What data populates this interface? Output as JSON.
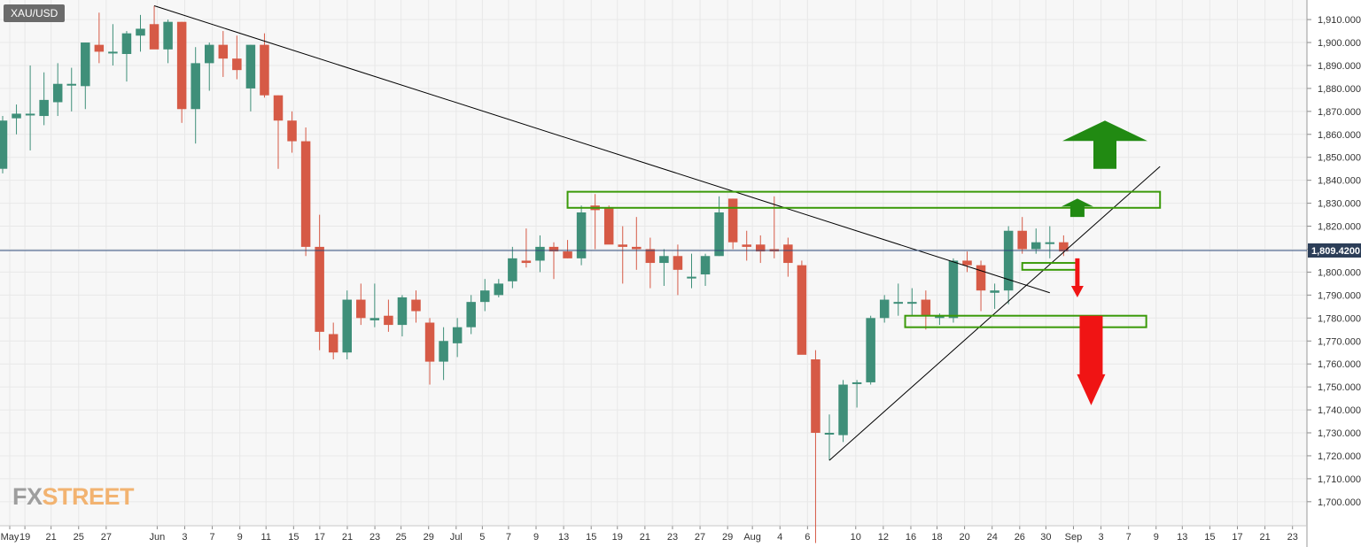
{
  "ticker": "XAU/USD",
  "logo": {
    "part1": "FX",
    "part2": "STREET"
  },
  "colors": {
    "bull": "#3f8f79",
    "bear": "#d65a46",
    "trend": "#000000",
    "zone": "#3b9a0a",
    "arrow_up": "#218a12",
    "arrow_down": "#f01414",
    "price_line": "#2e4a7a",
    "price_label_bg": "#2c3e58",
    "grid": "#e8e8e8",
    "axis_text": "#333333"
  },
  "chart_data": {
    "type": "candlestick",
    "title": "XAU/USD",
    "ylim": [
      1692,
      1918
    ],
    "y_ticks": [
      "1,700.0000",
      "1,710.0000",
      "1,720.0000",
      "1,730.0000",
      "1,740.0000",
      "1,750.0000",
      "1,760.0000",
      "1,770.0000",
      "1,780.0000",
      "1,790.0000",
      "1,800.0000",
      "1,810.0000",
      "1,820.0000",
      "1,830.0000",
      "1,840.0000",
      "1,850.0000",
      "1,860.0000",
      "1,870.0000",
      "1,880.0000",
      "1,890.0000",
      "1,900.0000",
      "1,910.0000"
    ],
    "x_ticks": [
      "May",
      "19",
      "21",
      "25",
      "27",
      "Jun",
      "3",
      "7",
      "9",
      "11",
      "15",
      "17",
      "21",
      "23",
      "25",
      "29",
      "Jul",
      "5",
      "7",
      "9",
      "13",
      "15",
      "19",
      "21",
      "23",
      "27",
      "29",
      "Aug",
      "4",
      "6",
      "10",
      "12",
      "16",
      "18",
      "20",
      "24",
      "26",
      "30",
      "Sep",
      "3",
      "7",
      "9",
      "13",
      "15",
      "17",
      "21",
      "23"
    ],
    "current_price": 1809.42,
    "current_price_label": "1,809.4200",
    "candles": [
      {
        "o": 1845,
        "h": 1868,
        "l": 1843,
        "c": 1866
      },
      {
        "o": 1867,
        "h": 1873,
        "l": 1860,
        "c": 1869
      },
      {
        "o": 1869,
        "h": 1890,
        "l": 1853,
        "c": 1869
      },
      {
        "o": 1868,
        "h": 1887,
        "l": 1864,
        "c": 1875
      },
      {
        "o": 1874,
        "h": 1891,
        "l": 1868,
        "c": 1882
      },
      {
        "o": 1882,
        "h": 1889,
        "l": 1870,
        "c": 1882
      },
      {
        "o": 1881,
        "h": 1900,
        "l": 1871,
        "c": 1900
      },
      {
        "o": 1899,
        "h": 1913,
        "l": 1891,
        "c": 1896
      },
      {
        "o": 1896,
        "h": 1908,
        "l": 1890,
        "c": 1896
      },
      {
        "o": 1895,
        "h": 1905,
        "l": 1883,
        "c": 1904
      },
      {
        "o": 1903,
        "h": 1912,
        "l": 1896,
        "c": 1906
      },
      {
        "o": 1908,
        "h": 1916,
        "l": 1898,
        "c": 1897
      },
      {
        "o": 1897,
        "h": 1910,
        "l": 1891,
        "c": 1909
      },
      {
        "o": 1909,
        "h": 1909,
        "l": 1865,
        "c": 1871
      },
      {
        "o": 1871,
        "h": 1898,
        "l": 1856,
        "c": 1891
      },
      {
        "o": 1891,
        "h": 1900,
        "l": 1879,
        "c": 1899
      },
      {
        "o": 1899,
        "h": 1905,
        "l": 1885,
        "c": 1893
      },
      {
        "o": 1893,
        "h": 1903,
        "l": 1884,
        "c": 1888
      },
      {
        "o": 1880,
        "h": 1899,
        "l": 1870,
        "c": 1899
      },
      {
        "o": 1899,
        "h": 1904,
        "l": 1876,
        "c": 1877
      },
      {
        "o": 1877,
        "h": 1877,
        "l": 1845,
        "c": 1866
      },
      {
        "o": 1866,
        "h": 1870,
        "l": 1852,
        "c": 1857
      },
      {
        "o": 1857,
        "h": 1863,
        "l": 1807,
        "c": 1811
      },
      {
        "o": 1811,
        "h": 1825,
        "l": 1766,
        "c": 1774
      },
      {
        "o": 1773,
        "h": 1778,
        "l": 1762,
        "c": 1765
      },
      {
        "o": 1765,
        "h": 1792,
        "l": 1762,
        "c": 1788
      },
      {
        "o": 1788,
        "h": 1795,
        "l": 1777,
        "c": 1780
      },
      {
        "o": 1779,
        "h": 1795,
        "l": 1776,
        "c": 1780
      },
      {
        "o": 1781,
        "h": 1788,
        "l": 1774,
        "c": 1777
      },
      {
        "o": 1777,
        "h": 1790,
        "l": 1772,
        "c": 1789
      },
      {
        "o": 1788,
        "h": 1792,
        "l": 1778,
        "c": 1783
      },
      {
        "o": 1778,
        "h": 1780,
        "l": 1751,
        "c": 1761
      },
      {
        "o": 1761,
        "h": 1776,
        "l": 1753,
        "c": 1770
      },
      {
        "o": 1769,
        "h": 1780,
        "l": 1763,
        "c": 1776
      },
      {
        "o": 1776,
        "h": 1790,
        "l": 1773,
        "c": 1787
      },
      {
        "o": 1787,
        "h": 1797,
        "l": 1783,
        "c": 1792
      },
      {
        "o": 1790,
        "h": 1797,
        "l": 1789,
        "c": 1795
      },
      {
        "o": 1796,
        "h": 1811,
        "l": 1793,
        "c": 1806
      },
      {
        "o": 1805,
        "h": 1819,
        "l": 1802,
        "c": 1804
      },
      {
        "o": 1805,
        "h": 1816,
        "l": 1800,
        "c": 1811
      },
      {
        "o": 1811,
        "h": 1813,
        "l": 1797,
        "c": 1809
      },
      {
        "o": 1809,
        "h": 1814,
        "l": 1806,
        "c": 1806
      },
      {
        "o": 1806,
        "h": 1829,
        "l": 1803,
        "c": 1826
      },
      {
        "o": 1829,
        "h": 1834,
        "l": 1810,
        "c": 1827
      },
      {
        "o": 1828,
        "h": 1829,
        "l": 1814,
        "c": 1812
      },
      {
        "o": 1812,
        "h": 1820,
        "l": 1795,
        "c": 1811
      },
      {
        "o": 1811,
        "h": 1824,
        "l": 1801,
        "c": 1810
      },
      {
        "o": 1810,
        "h": 1815,
        "l": 1793,
        "c": 1804
      },
      {
        "o": 1804,
        "h": 1810,
        "l": 1794,
        "c": 1807
      },
      {
        "o": 1807,
        "h": 1812,
        "l": 1790,
        "c": 1801
      },
      {
        "o": 1798,
        "h": 1808,
        "l": 1793,
        "c": 1798
      },
      {
        "o": 1799,
        "h": 1808,
        "l": 1794,
        "c": 1807
      },
      {
        "o": 1807,
        "h": 1833,
        "l": 1807,
        "c": 1826
      },
      {
        "o": 1832,
        "h": 1832,
        "l": 1810,
        "c": 1813
      },
      {
        "o": 1812,
        "h": 1818,
        "l": 1805,
        "c": 1811
      },
      {
        "o": 1812,
        "h": 1816,
        "l": 1804,
        "c": 1809
      },
      {
        "o": 1810,
        "h": 1833,
        "l": 1806,
        "c": 1809
      },
      {
        "o": 1812,
        "h": 1815,
        "l": 1798,
        "c": 1804
      },
      {
        "o": 1803,
        "h": 1805,
        "l": 1765,
        "c": 1764
      },
      {
        "o": 1762,
        "h": 1766,
        "l": 1682,
        "c": 1730
      },
      {
        "o": 1730,
        "h": 1738,
        "l": 1718,
        "c": 1730
      },
      {
        "o": 1729,
        "h": 1753,
        "l": 1726,
        "c": 1751
      },
      {
        "o": 1752,
        "h": 1753,
        "l": 1741,
        "c": 1752
      },
      {
        "o": 1752,
        "h": 1781,
        "l": 1751,
        "c": 1780
      },
      {
        "o": 1780,
        "h": 1790,
        "l": 1778,
        "c": 1788
      },
      {
        "o": 1787,
        "h": 1795,
        "l": 1781,
        "c": 1787
      },
      {
        "o": 1787,
        "h": 1793,
        "l": 1781,
        "c": 1787
      },
      {
        "o": 1788,
        "h": 1792,
        "l": 1775,
        "c": 1781
      },
      {
        "o": 1780,
        "h": 1782,
        "l": 1777,
        "c": 1781
      },
      {
        "o": 1780,
        "h": 1806,
        "l": 1778,
        "c": 1805
      },
      {
        "o": 1805,
        "h": 1809,
        "l": 1800,
        "c": 1803
      },
      {
        "o": 1803,
        "h": 1805,
        "l": 1783,
        "c": 1792
      },
      {
        "o": 1791,
        "h": 1795,
        "l": 1784,
        "c": 1792
      },
      {
        "o": 1792,
        "h": 1820,
        "l": 1786,
        "c": 1818
      },
      {
        "o": 1818,
        "h": 1824,
        "l": 1808,
        "c": 1810
      },
      {
        "o": 1810,
        "h": 1819,
        "l": 1808,
        "c": 1813
      },
      {
        "o": 1813,
        "h": 1820,
        "l": 1806,
        "c": 1813
      },
      {
        "o": 1813,
        "h": 1816,
        "l": 1807,
        "c": 1809
      }
    ],
    "annotations": {
      "trendlines": [
        {
          "x1": 11,
          "y1": 1916,
          "x2": 76,
          "y2": 1791
        },
        {
          "x1": 60,
          "y1": 1718,
          "x2": 84,
          "y2": 1846
        }
      ],
      "zones": [
        {
          "x1": 41,
          "y1": 1835,
          "x2": 84,
          "y2": 1828
        },
        {
          "x1": 74,
          "y1": 1804,
          "x2": 78,
          "y2": 1801
        },
        {
          "x1": 65.5,
          "y1": 1781,
          "x2": 83,
          "y2": 1776
        }
      ],
      "arrows": [
        {
          "kind": "up",
          "x": 80,
          "tail": 1845,
          "tip": 1866,
          "size": "large"
        },
        {
          "kind": "up",
          "x": 78,
          "tail": 1824,
          "tip": 1832,
          "size": "small"
        },
        {
          "kind": "down",
          "x": 78,
          "tail": 1806,
          "tip": 1789,
          "size": "small"
        },
        {
          "kind": "down",
          "x": 79,
          "tail": 1781,
          "tip": 1742,
          "size": "large"
        }
      ]
    }
  }
}
